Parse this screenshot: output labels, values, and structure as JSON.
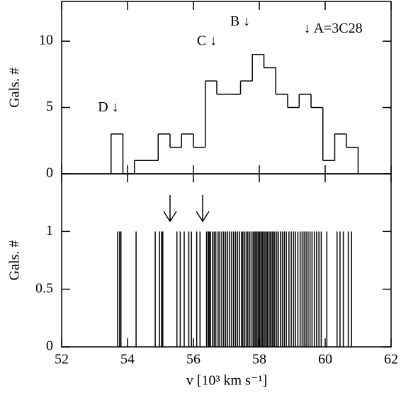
{
  "chart_data": [
    {
      "type": "histogram",
      "ylabel": "Gals. #",
      "bins": [
        53.5,
        53.86,
        54.21,
        54.57,
        54.93,
        55.29,
        55.64,
        56.0,
        56.36,
        56.71,
        57.07,
        57.43,
        57.79,
        58.14,
        58.5,
        58.86,
        59.21,
        59.57,
        59.93,
        60.29,
        60.64,
        61.0
      ],
      "values": [
        3,
        0,
        1,
        1,
        3,
        2,
        3,
        2,
        7,
        6,
        6,
        7,
        9,
        8,
        6,
        5,
        6,
        5,
        1,
        3,
        2
      ],
      "color": "#000000",
      "ylim": [
        0,
        13
      ],
      "yticks": [
        0,
        5,
        10
      ],
      "annotations": [
        {
          "text": "D ↓",
          "x": 53.42,
          "y": 4.95
        },
        {
          "text": "C ↓",
          "x": 56.41,
          "y": 9.95
        },
        {
          "text": "B ↓",
          "x": 57.42,
          "y": 11.44
        },
        {
          "text": "↓ A=3C28",
          "x": 60.24,
          "y": 10.9
        }
      ]
    },
    {
      "type": "stick",
      "ylabel": "Gals. #",
      "xlabel": "v [10³ km s⁻¹]",
      "xlim": [
        52,
        62
      ],
      "xticks": [
        52,
        54,
        56,
        58,
        60,
        62
      ],
      "ylim": [
        0,
        1.5
      ],
      "yticks": [
        0,
        0.5,
        1
      ],
      "color": "#000000",
      "x": [
        53.7,
        53.76,
        53.8,
        54.26,
        54.84,
        54.97,
        55.03,
        55.07,
        55.5,
        55.6,
        55.72,
        55.86,
        55.94,
        56.1,
        56.2,
        56.4,
        56.45,
        56.48,
        56.52,
        56.58,
        56.63,
        56.68,
        56.75,
        56.8,
        56.86,
        56.92,
        56.98,
        57.04,
        57.1,
        57.16,
        57.22,
        57.28,
        57.34,
        57.4,
        57.46,
        57.5,
        57.55,
        57.6,
        57.65,
        57.7,
        57.75,
        57.81,
        57.85,
        57.89,
        57.93,
        57.97,
        58.01,
        58.05,
        58.09,
        58.12,
        58.17,
        58.21,
        58.25,
        58.3,
        58.34,
        58.39,
        58.43,
        58.47,
        58.53,
        58.58,
        58.64,
        58.7,
        58.76,
        58.82,
        58.9,
        58.97,
        59.04,
        59.1,
        59.17,
        59.24,
        59.3,
        59.36,
        59.42,
        59.48,
        59.54,
        59.6,
        59.67,
        59.74,
        59.81,
        59.88,
        60.05,
        60.36,
        60.45,
        60.55,
        60.7,
        60.8
      ],
      "values": [
        1,
        1,
        1,
        1,
        1,
        1,
        1,
        1,
        1,
        1,
        1,
        1,
        1,
        1,
        1,
        1,
        1,
        1,
        1,
        1,
        1,
        1,
        1,
        1,
        1,
        1,
        1,
        1,
        1,
        1,
        1,
        1,
        1,
        1,
        1,
        1,
        1,
        1,
        1,
        1,
        1,
        1,
        1,
        1,
        1,
        1,
        1,
        1,
        1,
        1,
        1,
        1,
        1,
        1,
        1,
        1,
        1,
        1,
        1,
        1,
        1,
        1,
        1,
        1,
        1,
        1,
        1,
        1,
        1,
        1,
        1,
        1,
        1,
        1,
        1,
        1,
        1,
        1,
        1,
        1,
        1,
        1,
        1,
        1,
        1,
        1
      ],
      "arrows": [
        55.29,
        56.28
      ]
    }
  ]
}
